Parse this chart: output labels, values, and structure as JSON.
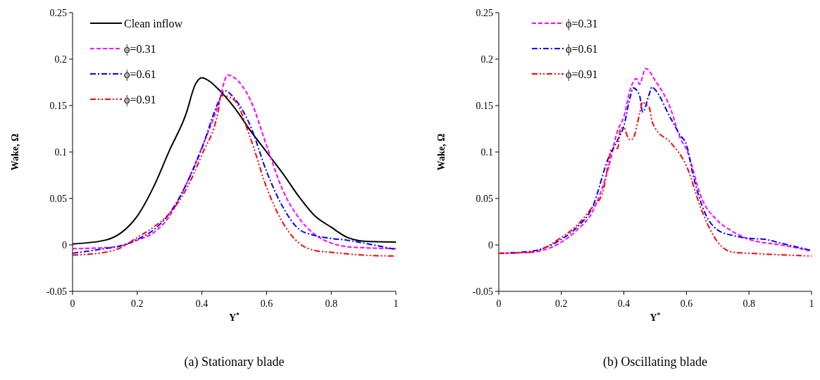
{
  "chart_data": [
    {
      "type": "line",
      "title": "(a) Stationary blade",
      "xlabel": "Y$^{*}$",
      "ylabel": "Wake, Ω",
      "xlim": [
        0,
        1
      ],
      "xticks": [
        0,
        0.2,
        0.4,
        0.6,
        0.8,
        1
      ],
      "ylim": [
        -0.05,
        0.25
      ],
      "yticks": [
        -0.05,
        0,
        0.05,
        0.1,
        0.15,
        0.2,
        0.25
      ],
      "legend": "top left",
      "series": [
        {
          "name": "Clean inflow",
          "color": "#000000",
          "line_style": "solid",
          "x": [
            0,
            0.1,
            0.15,
            0.2,
            0.25,
            0.3,
            0.35,
            0.38,
            0.4,
            0.42,
            0.45,
            0.5,
            0.55,
            0.6,
            0.65,
            0.7,
            0.75,
            0.8,
            0.85,
            0.9,
            1
          ],
          "values": [
            0.001,
            0.005,
            0.013,
            0.031,
            0.062,
            0.102,
            0.14,
            0.173,
            0.18,
            0.177,
            0.168,
            0.148,
            0.123,
            0.1,
            0.077,
            0.052,
            0.031,
            0.019,
            0.008,
            0.004,
            0.003
          ]
        },
        {
          "name": "ϕ=0.31",
          "color": "#ff00ff",
          "line_style": "dashed",
          "x": [
            0,
            0.1,
            0.15,
            0.2,
            0.25,
            0.3,
            0.35,
            0.4,
            0.45,
            0.48,
            0.5,
            0.55,
            0.6,
            0.65,
            0.7,
            0.75,
            0.8,
            0.85,
            0.9,
            1
          ],
          "values": [
            -0.004,
            -0.003,
            -0.001,
            0.005,
            0.013,
            0.031,
            0.064,
            0.105,
            0.15,
            0.183,
            0.18,
            0.156,
            0.107,
            0.059,
            0.029,
            0.011,
            0.002,
            -0.002,
            -0.003,
            -0.004
          ]
        },
        {
          "name": "ϕ=0.61",
          "color": "#0000ff",
          "line_style": "dashdot",
          "x": [
            0,
            0.1,
            0.15,
            0.2,
            0.25,
            0.3,
            0.35,
            0.4,
            0.45,
            0.47,
            0.5,
            0.55,
            0.6,
            0.65,
            0.7,
            0.75,
            0.8,
            0.85,
            0.9,
            1
          ],
          "values": [
            -0.009,
            -0.004,
            -0.001,
            0.006,
            0.016,
            0.034,
            0.064,
            0.104,
            0.153,
            0.166,
            0.158,
            0.128,
            0.079,
            0.041,
            0.017,
            0.01,
            0.007,
            0.005,
            0.002,
            -0.005
          ]
        },
        {
          "name": "ϕ=0.91",
          "color": "#ff0000",
          "line_style": "dashdotdot",
          "x": [
            0,
            0.1,
            0.15,
            0.2,
            0.25,
            0.3,
            0.35,
            0.4,
            0.45,
            0.46,
            0.5,
            0.55,
            0.6,
            0.65,
            0.7,
            0.75,
            0.8,
            0.9,
            1
          ],
          "values": [
            -0.011,
            -0.008,
            -0.003,
            0.008,
            0.019,
            0.034,
            0.059,
            0.097,
            0.143,
            0.161,
            0.156,
            0.115,
            0.062,
            0.024,
            0.002,
            -0.006,
            -0.008,
            -0.011,
            -0.012
          ]
        }
      ]
    },
    {
      "type": "line",
      "title": "(b) Oscillating blade",
      "xlabel": "Y$^{*}$",
      "ylabel": "Wake, Ω",
      "xlim": [
        0,
        1
      ],
      "xticks": [
        0,
        0.2,
        0.4,
        0.6,
        0.8,
        1
      ],
      "ylim": [
        -0.05,
        0.25
      ],
      "yticks": [
        -0.05,
        0,
        0.05,
        0.1,
        0.15,
        0.2,
        0.25
      ],
      "legend": "top left",
      "series": [
        {
          "name": "ϕ=0.31",
          "color": "#ff00ff",
          "line_style": "dashed",
          "x": [
            0,
            0.1,
            0.2,
            0.25,
            0.3,
            0.35,
            0.38,
            0.4,
            0.42,
            0.44,
            0.45,
            0.47,
            0.5,
            0.55,
            0.58,
            0.6,
            0.65,
            0.7,
            0.75,
            0.8,
            0.9,
            0.95,
            1
          ],
          "values": [
            -0.009,
            -0.008,
            0.003,
            0.016,
            0.036,
            0.082,
            0.123,
            0.138,
            0.167,
            0.179,
            0.173,
            0.19,
            0.177,
            0.146,
            0.115,
            0.103,
            0.049,
            0.026,
            0.014,
            0.006,
            0,
            -0.003,
            -0.007
          ]
        },
        {
          "name": "ϕ=0.61",
          "color": "#0000ff",
          "line_style": "dashdot",
          "x": [
            0,
            0.1,
            0.2,
            0.25,
            0.3,
            0.35,
            0.38,
            0.4,
            0.42,
            0.43,
            0.45,
            0.46,
            0.48,
            0.49,
            0.5,
            0.55,
            0.58,
            0.6,
            0.62,
            0.65,
            0.7,
            0.75,
            0.8,
            0.85,
            0.9,
            1
          ],
          "values": [
            -0.009,
            -0.007,
            0.006,
            0.019,
            0.041,
            0.093,
            0.113,
            0.128,
            0.159,
            0.169,
            0.161,
            0.143,
            0.161,
            0.17,
            0.167,
            0.136,
            0.118,
            0.108,
            0.077,
            0.042,
            0.016,
            0.01,
            0.007,
            0.006,
            0.002,
            -0.006
          ]
        },
        {
          "name": "ϕ=0.91",
          "color": "#ff0000",
          "line_style": "dashdotdot",
          "x": [
            0,
            0.1,
            0.2,
            0.25,
            0.3,
            0.33,
            0.35,
            0.36,
            0.38,
            0.39,
            0.4,
            0.41,
            0.42,
            0.43,
            0.45,
            0.46,
            0.47,
            0.48,
            0.49,
            0.5,
            0.55,
            0.6,
            0.65,
            0.7,
            0.75,
            0.8,
            1
          ],
          "values": [
            -0.009,
            -0.008,
            0.008,
            0.021,
            0.041,
            0.054,
            0.087,
            0.103,
            0.104,
            0.126,
            0.126,
            0.118,
            0.113,
            0.115,
            0.141,
            0.154,
            0.151,
            0.149,
            0.133,
            0.126,
            0.11,
            0.085,
            0.036,
            0.003,
            -0.008,
            -0.009,
            -0.012
          ]
        }
      ]
    }
  ]
}
